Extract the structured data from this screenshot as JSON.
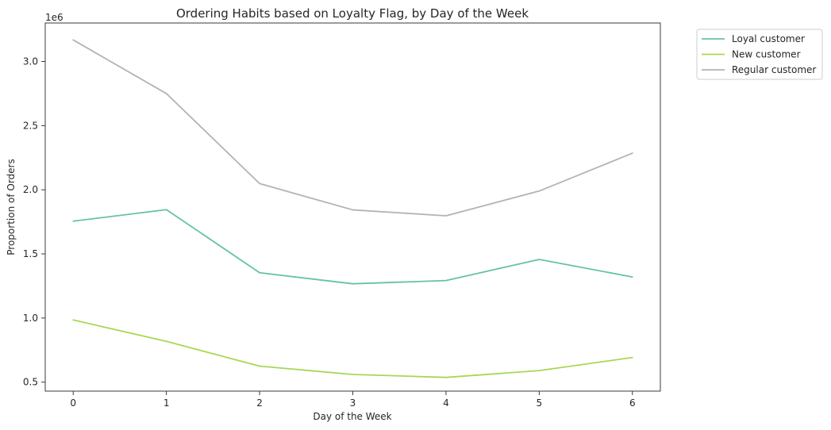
{
  "chart_data": {
    "type": "line",
    "title": "Ordering Habits based on Loyalty Flag, by Day of the Week",
    "xlabel": "Day of the Week",
    "ylabel": "Proportion of Orders",
    "y_offset_label": "1e6",
    "x": [
      0,
      1,
      2,
      3,
      4,
      5,
      6
    ],
    "xlim": [
      -0.3,
      6.3
    ],
    "ylim": [
      0.43,
      3.3
    ],
    "xticks": [
      0,
      1,
      2,
      3,
      4,
      5,
      6
    ],
    "xtick_labels": [
      "0",
      "1",
      "2",
      "3",
      "4",
      "5",
      "6"
    ],
    "yticks": [
      0.5,
      1.0,
      1.5,
      2.0,
      2.5,
      3.0
    ],
    "ytick_labels": [
      "0.5",
      "1.0",
      "1.5",
      "2.0",
      "2.5",
      "3.0"
    ],
    "grid": false,
    "legend_position": "outside-top-right",
    "series": [
      {
        "name": "Loyal customer",
        "color": "#66c2a5",
        "values": [
          1.755,
          1.845,
          1.353,
          1.267,
          1.292,
          1.457,
          1.32
        ]
      },
      {
        "name": "New customer",
        "color": "#a6d854",
        "values": [
          0.985,
          0.818,
          0.625,
          0.56,
          0.537,
          0.59,
          0.692
        ]
      },
      {
        "name": "Regular customer",
        "color": "#b3b3b3",
        "values": [
          3.168,
          2.75,
          2.048,
          1.843,
          1.797,
          1.99,
          2.285
        ]
      }
    ]
  }
}
